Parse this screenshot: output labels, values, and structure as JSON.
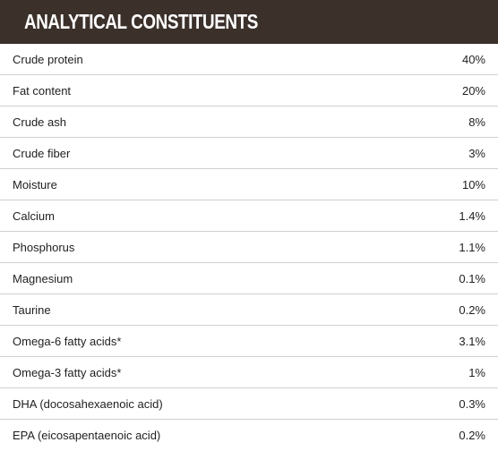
{
  "header": {
    "title": "ANALYTICAL CONSTITUENTS"
  },
  "rows": [
    {
      "label": "Crude protein",
      "value": "40%"
    },
    {
      "label": "Fat content",
      "value": "20%"
    },
    {
      "label": "Crude ash",
      "value": "8%"
    },
    {
      "label": "Crude fiber",
      "value": "3%"
    },
    {
      "label": "Moisture",
      "value": "10%"
    },
    {
      "label": "Calcium",
      "value": "1.4%"
    },
    {
      "label": "Phosphorus",
      "value": "1.1%"
    },
    {
      "label": "Magnesium",
      "value": "0.1%"
    },
    {
      "label": "Taurine",
      "value": "0.2%"
    },
    {
      "label": "Omega-6 fatty acids*",
      "value": "3.1%"
    },
    {
      "label": "Omega-3 fatty acids*",
      "value": "1%"
    },
    {
      "label": "DHA (docosahexaenoic acid)",
      "value": "0.3%"
    },
    {
      "label": "EPA (eicosapentaenoic acid)",
      "value": "0.2%"
    }
  ]
}
